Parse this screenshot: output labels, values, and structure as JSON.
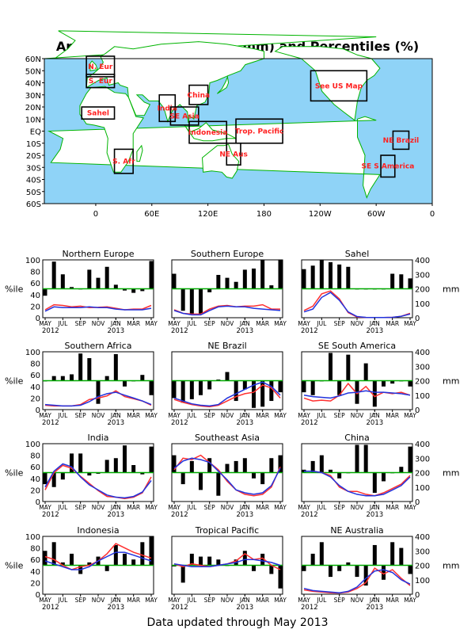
{
  "title": "Area Precipitation Totals (mm) and Percentiles (%)",
  "footer": "Data updated through May 2013",
  "colors": {
    "ocean": "#8fd3f7",
    "land": "#ffffff",
    "coast": "#00b400",
    "region_label": "#ff2020",
    "bar": "#000000",
    "pct_line": "#00aa00",
    "line_red": "#ff3030",
    "line_blue": "#2233dd"
  },
  "map": {
    "lat_labels": [
      "60N",
      "50N",
      "40N",
      "30N",
      "20N",
      "10N",
      "EQ",
      "10S",
      "20S",
      "30S",
      "40S",
      "50S",
      "60S"
    ],
    "lon_labels": [
      "0",
      "60E",
      "120E",
      "180",
      "120W",
      "60W",
      "0"
    ],
    "regions": [
      {
        "label": "N. Eur",
        "lon": [
          -10,
          20
        ],
        "lat": [
          45,
          62
        ]
      },
      {
        "label": "S. Eur",
        "lon": [
          -10,
          20
        ],
        "lat": [
          36,
          47
        ]
      },
      {
        "label": "Sahel",
        "lon": [
          -15,
          20
        ],
        "lat": [
          10,
          20
        ]
      },
      {
        "label": "S. Afr",
        "lon": [
          20,
          40
        ],
        "lat": [
          -35,
          -15
        ]
      },
      {
        "label": "India",
        "lon": [
          68,
          85
        ],
        "lat": [
          8,
          30
        ]
      },
      {
        "label": "SE Asia",
        "lon": [
          80,
          110
        ],
        "lat": [
          5,
          20
        ]
      },
      {
        "label": "China",
        "lon": [
          100,
          120
        ],
        "lat": [
          22,
          38
        ]
      },
      {
        "label": "Indonesia",
        "lon": [
          100,
          140
        ],
        "lat": [
          -10,
          8
        ]
      },
      {
        "label": "Trop. Pacific",
        "lon": [
          150,
          200
        ],
        "lat": [
          -10,
          10
        ]
      },
      {
        "label": "NE Aus",
        "lon": [
          140,
          155
        ],
        "lat": [
          -28,
          -10
        ]
      },
      {
        "label": "See US Map",
        "lon": [
          230,
          290
        ],
        "lat": [
          25,
          50
        ]
      },
      {
        "label": "NE Brazil",
        "lon": [
          318,
          335
        ],
        "lat": [
          -15,
          0
        ]
      },
      {
        "label": "SE S America",
        "lon": [
          305,
          320
        ],
        "lat": [
          -38,
          -20
        ]
      }
    ]
  },
  "panel_axes": {
    "pct_label": "%ile",
    "mm_label": "mm",
    "pct_ticks": [
      "0",
      "20",
      "40",
      "60",
      "80",
      "100"
    ],
    "mm_ticks": [
      "0",
      "100",
      "200",
      "300",
      "400"
    ],
    "x_months": [
      "MAY",
      "JUL",
      "SEP",
      "NOV",
      "JAN",
      "MAR",
      "MAY"
    ],
    "x_years": [
      "2012",
      "2013"
    ]
  },
  "chart_data": [
    {
      "type": "bar",
      "title": "Northern Europe",
      "months": [
        "2012-05",
        "2012-06",
        "2012-07",
        "2012-08",
        "2012-09",
        "2012-10",
        "2012-11",
        "2012-12",
        "2013-01",
        "2013-02",
        "2013-03",
        "2013-04",
        "2013-05"
      ],
      "percentile": [
        38,
        97,
        75,
        53,
        50,
        83,
        69,
        88,
        57,
        47,
        43,
        46,
        98
      ],
      "series": [
        {
          "values": [
            55,
            90,
            85,
            75,
            80,
            70,
            72,
            75,
            65,
            55,
            60,
            60,
            85
          ]
        },
        {
          "values": [
            45,
            75,
            70,
            70,
            70,
            75,
            70,
            70,
            60,
            55,
            55,
            55,
            65
          ]
        }
      ],
      "ylim_pct": [
        0,
        100
      ],
      "ylim_mm": [
        0,
        400
      ]
    },
    {
      "type": "bar",
      "title": "Southern Europe",
      "months": [
        "2012-05",
        "2012-06",
        "2012-07",
        "2012-08",
        "2012-09",
        "2012-10",
        "2012-11",
        "2012-12",
        "2013-01",
        "2013-02",
        "2013-03",
        "2013-04",
        "2013-05"
      ],
      "percentile": [
        76,
        12,
        5,
        7,
        44,
        74,
        69,
        62,
        83,
        85,
        100,
        56,
        100
      ],
      "series": [
        {
          "values": [
            55,
            30,
            25,
            25,
            60,
            80,
            85,
            75,
            80,
            80,
            90,
            60,
            60
          ]
        },
        {
          "values": [
            50,
            30,
            20,
            20,
            50,
            75,
            80,
            75,
            75,
            65,
            60,
            55,
            50
          ]
        }
      ],
      "ylim_pct": [
        0,
        100
      ],
      "ylim_mm": [
        0,
        400
      ]
    },
    {
      "type": "bar",
      "title": "Sahel",
      "months": [
        "2012-05",
        "2012-06",
        "2012-07",
        "2012-08",
        "2012-09",
        "2012-10",
        "2012-11",
        "2012-12",
        "2013-01",
        "2013-02",
        "2013-03",
        "2013-04",
        "2013-05"
      ],
      "percentile": [
        84,
        90,
        100,
        96,
        92,
        88,
        50,
        49,
        50,
        50,
        76,
        75,
        68
      ],
      "series": [
        {
          "values": [
            50,
            80,
            165,
            185,
            130,
            35,
            5,
            2,
            1,
            1,
            3,
            10,
            30
          ]
        },
        {
          "values": [
            40,
            60,
            140,
            175,
            120,
            40,
            8,
            2,
            1,
            1,
            3,
            10,
            25
          ]
        }
      ],
      "ylim_pct": [
        0,
        100
      ],
      "ylim_mm": [
        0,
        400
      ]
    },
    {
      "type": "bar",
      "title": "Southern Africa",
      "months": [
        "2012-05",
        "2012-06",
        "2012-07",
        "2012-08",
        "2012-09",
        "2012-10",
        "2012-11",
        "2012-12",
        "2013-01",
        "2013-02",
        "2013-03",
        "2013-04",
        "2013-05"
      ],
      "percentile": [
        50,
        58,
        58,
        61,
        97,
        89,
        10,
        58,
        96,
        40,
        50,
        60,
        25
      ],
      "series": [
        {
          "values": [
            30,
            25,
            25,
            25,
            35,
            70,
            80,
            95,
            130,
            90,
            75,
            60,
            30
          ]
        },
        {
          "values": [
            35,
            30,
            25,
            25,
            30,
            55,
            90,
            110,
            120,
            100,
            80,
            60,
            35
          ]
        }
      ],
      "ylim_pct": [
        0,
        100
      ],
      "ylim_mm": [
        0,
        400
      ]
    },
    {
      "type": "bar",
      "title": "NE Brazil",
      "months": [
        "2012-05",
        "2012-06",
        "2012-07",
        "2012-08",
        "2012-09",
        "2012-10",
        "2012-11",
        "2012-12",
        "2013-01",
        "2013-02",
        "2013-03",
        "2013-04",
        "2013-05"
      ],
      "percentile": [
        20,
        12,
        18,
        25,
        35,
        52,
        65,
        15,
        35,
        3,
        5,
        15,
        30
      ],
      "series": [
        {
          "values": [
            70,
            50,
            35,
            25,
            20,
            30,
            60,
            90,
            110,
            120,
            170,
            150,
            80
          ]
        },
        {
          "values": [
            80,
            60,
            40,
            30,
            25,
            35,
            80,
            110,
            140,
            170,
            190,
            160,
            100
          ]
        }
      ],
      "ylim_pct": [
        0,
        100
      ],
      "ylim_mm": [
        0,
        400
      ]
    },
    {
      "type": "bar",
      "title": "SE South America",
      "months": [
        "2012-05",
        "2012-06",
        "2012-07",
        "2012-08",
        "2012-09",
        "2012-10",
        "2012-11",
        "2012-12",
        "2013-01",
        "2013-02",
        "2013-03",
        "2013-04",
        "2013-05"
      ],
      "percentile": [
        30,
        25,
        50,
        98,
        25,
        95,
        10,
        80,
        5,
        40,
        45,
        50,
        40
      ],
      "series": [
        {
          "values": [
            80,
            60,
            65,
            60,
            100,
            180,
            110,
            160,
            90,
            120,
            110,
            120,
            100
          ]
        },
        {
          "values": [
            100,
            90,
            85,
            80,
            95,
            115,
            120,
            130,
            120,
            120,
            115,
            110,
            100
          ]
        }
      ],
      "ylim_pct": [
        0,
        100
      ],
      "ylim_mm": [
        0,
        400
      ]
    },
    {
      "type": "bar",
      "title": "India",
      "months": [
        "2012-05",
        "2012-06",
        "2012-07",
        "2012-08",
        "2012-09",
        "2012-10",
        "2012-11",
        "2012-12",
        "2013-01",
        "2013-02",
        "2013-03",
        "2013-04",
        "2013-05"
      ],
      "percentile": [
        30,
        25,
        38,
        83,
        83,
        45,
        48,
        72,
        75,
        97,
        63,
        47,
        95
      ],
      "series": [
        {
          "values": [
            80,
            200,
            250,
            230,
            175,
            125,
            75,
            35,
            30,
            20,
            30,
            60,
            170
          ]
        },
        {
          "values": [
            100,
            210,
            260,
            240,
            170,
            115,
            80,
            45,
            30,
            25,
            35,
            65,
            145
          ]
        }
      ],
      "ylim_pct": [
        0,
        100
      ],
      "ylim_mm": [
        0,
        400
      ]
    },
    {
      "type": "bar",
      "title": "Southeast Asia",
      "months": [
        "2012-05",
        "2012-06",
        "2012-07",
        "2012-08",
        "2012-09",
        "2012-10",
        "2012-11",
        "2012-12",
        "2013-01",
        "2013-02",
        "2013-03",
        "2013-04",
        "2013-05"
      ],
      "percentile": [
        80,
        30,
        70,
        20,
        75,
        10,
        65,
        70,
        75,
        40,
        30,
        75,
        80
      ],
      "series": [
        {
          "values": [
            220,
            300,
            290,
            320,
            270,
            220,
            140,
            80,
            50,
            40,
            50,
            100,
            240
          ]
        },
        {
          "values": [
            230,
            280,
            300,
            290,
            270,
            210,
            150,
            80,
            60,
            50,
            60,
            110,
            230
          ]
        }
      ],
      "ylim_pct": [
        0,
        100
      ],
      "ylim_mm": [
        0,
        400
      ]
    },
    {
      "type": "bar",
      "title": "China",
      "months": [
        "2012-05",
        "2012-06",
        "2012-07",
        "2012-08",
        "2012-09",
        "2012-10",
        "2012-11",
        "2012-12",
        "2013-01",
        "2013-02",
        "2013-03",
        "2013-04",
        "2013-05"
      ],
      "percentile": [
        55,
        70,
        80,
        55,
        40,
        50,
        98,
        98,
        15,
        35,
        50,
        60,
        95
      ],
      "series": [
        {
          "values": [
            210,
            210,
            200,
            180,
            100,
            70,
            70,
            50,
            40,
            60,
            90,
            120,
            180
          ]
        },
        {
          "values": [
            210,
            210,
            200,
            170,
            110,
            70,
            50,
            40,
            40,
            50,
            80,
            110,
            170
          ]
        }
      ],
      "ylim_pct": [
        0,
        100
      ],
      "ylim_mm": [
        0,
        400
      ]
    },
    {
      "type": "bar",
      "title": "Indonesia",
      "months": [
        "2012-05",
        "2012-06",
        "2012-07",
        "2012-08",
        "2012-09",
        "2012-10",
        "2012-11",
        "2012-12",
        "2013-01",
        "2013-02",
        "2013-03",
        "2013-04",
        "2013-05"
      ],
      "percentile": [
        75,
        90,
        55,
        70,
        35,
        55,
        65,
        40,
        85,
        70,
        60,
        90,
        100
      ],
      "series": [
        {
          "values": [
            260,
            240,
            200,
            170,
            190,
            200,
            230,
            280,
            350,
            320,
            290,
            270,
            250
          ]
        },
        {
          "values": [
            230,
            210,
            190,
            170,
            170,
            190,
            230,
            260,
            290,
            290,
            270,
            250,
            230
          ]
        }
      ],
      "ylim_pct": [
        0,
        100
      ],
      "ylim_mm": [
        0,
        400
      ]
    },
    {
      "type": "bar",
      "title": "Tropical Pacific",
      "months": [
        "2012-05",
        "2012-06",
        "2012-07",
        "2012-08",
        "2012-09",
        "2012-10",
        "2012-11",
        "2012-12",
        "2013-01",
        "2013-02",
        "2013-03",
        "2013-04",
        "2013-05"
      ],
      "percentile": [
        48,
        20,
        70,
        65,
        65,
        60,
        50,
        60,
        75,
        40,
        70,
        35,
        10
      ],
      "series": [
        {
          "values": [
            210,
            190,
            210,
            200,
            190,
            200,
            210,
            230,
            280,
            240,
            250,
            200,
            170
          ]
        },
        {
          "values": [
            210,
            200,
            190,
            190,
            190,
            200,
            210,
            220,
            240,
            240,
            230,
            220,
            200
          ]
        }
      ],
      "ylim_pct": [
        0,
        100
      ],
      "ylim_mm": [
        0,
        400
      ]
    },
    {
      "type": "bar",
      "title": "NE Australia",
      "months": [
        "2012-05",
        "2012-06",
        "2012-07",
        "2012-08",
        "2012-09",
        "2012-10",
        "2012-11",
        "2012-12",
        "2013-01",
        "2013-02",
        "2013-03",
        "2013-04",
        "2013-05"
      ],
      "percentile": [
        40,
        70,
        90,
        30,
        40,
        55,
        30,
        15,
        85,
        25,
        90,
        80,
        35
      ],
      "series": [
        {
          "values": [
            30,
            20,
            15,
            10,
            8,
            15,
            40,
            80,
            180,
            140,
            170,
            110,
            60
          ]
        },
        {
          "values": [
            40,
            25,
            20,
            15,
            10,
            20,
            50,
            110,
            160,
            170,
            150,
            100,
            70
          ]
        }
      ],
      "ylim_pct": [
        0,
        100
      ],
      "ylim_mm": [
        0,
        400
      ]
    }
  ]
}
